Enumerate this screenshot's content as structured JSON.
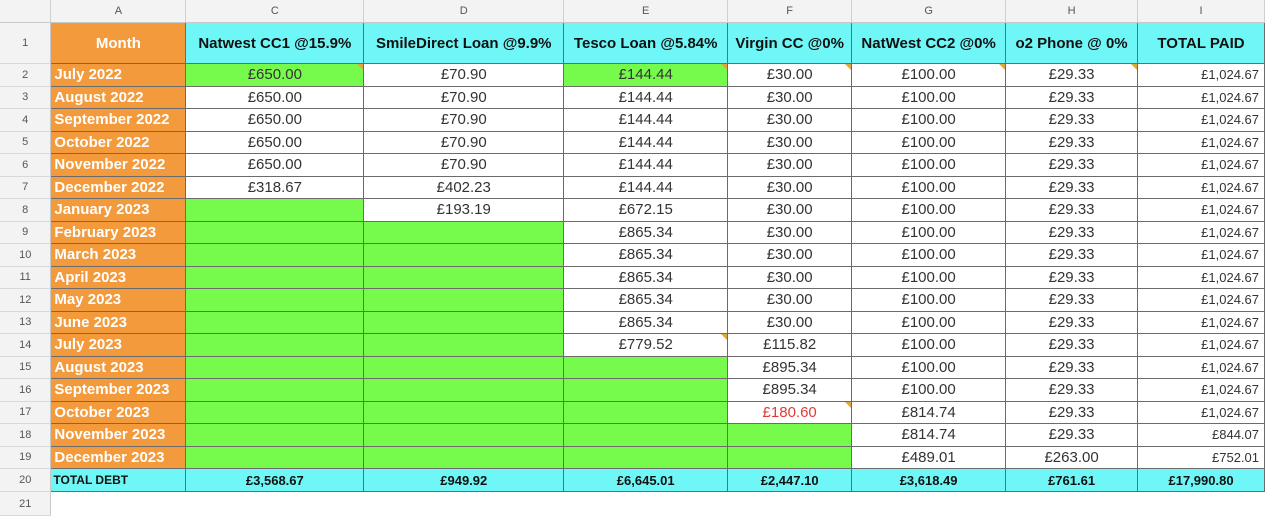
{
  "column_letters": [
    "A",
    "C",
    "D",
    "E",
    "F",
    "G",
    "H",
    "I"
  ],
  "column_arrows": "◀ ▶",
  "header": {
    "row_number": "1",
    "cells": [
      "Month",
      "Natwest CC1 @15.9%",
      "SmileDirect Loan @9.9%",
      "Tesco Loan @5.84%",
      "Virgin CC @0%",
      "NatWest CC2 @0%",
      "o2 Phone @ 0%",
      "TOTAL PAID"
    ]
  },
  "rows": [
    {
      "num": "2",
      "cells": [
        "July 2022",
        "£650.00",
        "£70.90",
        "£144.44",
        "£30.00",
        "£100.00",
        "£29.33",
        "£1,024.67"
      ]
    },
    {
      "num": "3",
      "cells": [
        "August 2022",
        "£650.00",
        "£70.90",
        "£144.44",
        "£30.00",
        "£100.00",
        "£29.33",
        "£1,024.67"
      ]
    },
    {
      "num": "4",
      "cells": [
        "September 2022",
        "£650.00",
        "£70.90",
        "£144.44",
        "£30.00",
        "£100.00",
        "£29.33",
        "£1,024.67"
      ]
    },
    {
      "num": "5",
      "cells": [
        "October 2022",
        "£650.00",
        "£70.90",
        "£144.44",
        "£30.00",
        "£100.00",
        "£29.33",
        "£1,024.67"
      ]
    },
    {
      "num": "6",
      "cells": [
        "November 2022",
        "£650.00",
        "£70.90",
        "£144.44",
        "£30.00",
        "£100.00",
        "£29.33",
        "£1,024.67"
      ]
    },
    {
      "num": "7",
      "cells": [
        "December 2022",
        "£318.67",
        "£402.23",
        "£144.44",
        "£30.00",
        "£100.00",
        "£29.33",
        "£1,024.67"
      ]
    },
    {
      "num": "8",
      "cells": [
        "January 2023",
        "",
        "£193.19",
        "£672.15",
        "£30.00",
        "£100.00",
        "£29.33",
        "£1,024.67"
      ]
    },
    {
      "num": "9",
      "cells": [
        "February 2023",
        "",
        "",
        "£865.34",
        "£30.00",
        "£100.00",
        "£29.33",
        "£1,024.67"
      ]
    },
    {
      "num": "10",
      "cells": [
        "March 2023",
        "",
        "",
        "£865.34",
        "£30.00",
        "£100.00",
        "£29.33",
        "£1,024.67"
      ]
    },
    {
      "num": "11",
      "cells": [
        "April 2023",
        "",
        "",
        "£865.34",
        "£30.00",
        "£100.00",
        "£29.33",
        "£1,024.67"
      ]
    },
    {
      "num": "12",
      "cells": [
        "May 2023",
        "",
        "",
        "£865.34",
        "£30.00",
        "£100.00",
        "£29.33",
        "£1,024.67"
      ]
    },
    {
      "num": "13",
      "cells": [
        "June 2023",
        "",
        "",
        "£865.34",
        "£30.00",
        "£100.00",
        "£29.33",
        "£1,024.67"
      ]
    },
    {
      "num": "14",
      "cells": [
        "July 2023",
        "",
        "",
        "£779.52",
        "£115.82",
        "£100.00",
        "£29.33",
        "£1,024.67"
      ]
    },
    {
      "num": "15",
      "cells": [
        "August 2023",
        "",
        "",
        "",
        "£895.34",
        "£100.00",
        "£29.33",
        "£1,024.67"
      ]
    },
    {
      "num": "16",
      "cells": [
        "September 2023",
        "",
        "",
        "",
        "£895.34",
        "£100.00",
        "£29.33",
        "£1,024.67"
      ]
    },
    {
      "num": "17",
      "cells": [
        "October 2023",
        "",
        "",
        "",
        "£180.60",
        "£814.74",
        "£29.33",
        "£1,024.67"
      ]
    },
    {
      "num": "18",
      "cells": [
        "November 2023",
        "",
        "",
        "",
        "",
        "£814.74",
        "£29.33",
        "£844.07"
      ]
    },
    {
      "num": "19",
      "cells": [
        "December 2023",
        "",
        "",
        "",
        "",
        "£489.01",
        "£263.00",
        "£752.01"
      ]
    }
  ],
  "green_cells": [
    [
      0,
      1
    ],
    [
      0,
      3
    ],
    [
      6,
      1
    ],
    [
      7,
      1
    ],
    [
      7,
      2
    ],
    [
      8,
      1
    ],
    [
      8,
      2
    ],
    [
      9,
      1
    ],
    [
      9,
      2
    ],
    [
      10,
      1
    ],
    [
      10,
      2
    ],
    [
      11,
      1
    ],
    [
      11,
      2
    ],
    [
      12,
      1
    ],
    [
      12,
      2
    ],
    [
      13,
      1
    ],
    [
      13,
      2
    ],
    [
      13,
      3
    ],
    [
      14,
      1
    ],
    [
      14,
      2
    ],
    [
      14,
      3
    ],
    [
      15,
      1
    ],
    [
      15,
      2
    ],
    [
      15,
      3
    ],
    [
      16,
      1
    ],
    [
      16,
      2
    ],
    [
      16,
      3
    ],
    [
      16,
      4
    ],
    [
      17,
      1
    ],
    [
      17,
      2
    ],
    [
      17,
      3
    ],
    [
      17,
      4
    ]
  ],
  "flagged_cells": [
    [
      0,
      1
    ],
    [
      0,
      3
    ],
    [
      0,
      4
    ],
    [
      0,
      5
    ],
    [
      0,
      6
    ],
    [
      12,
      3
    ],
    [
      15,
      4
    ]
  ],
  "red_cells": [
    [
      15,
      4
    ]
  ],
  "totals": {
    "row_number": "20",
    "cells": [
      "TOTAL DEBT",
      "£3,568.67",
      "£949.92",
      "£6,645.01",
      "£2,447.10",
      "£3,618.49",
      "£761.61",
      "£17,990.80"
    ]
  },
  "empty_row_number": "21",
  "colors": {
    "month_orange": "#f39a3c",
    "header_cyan": "#6ff7f7",
    "paid_green": "#76fb4c",
    "warning_red": "#e53935"
  }
}
